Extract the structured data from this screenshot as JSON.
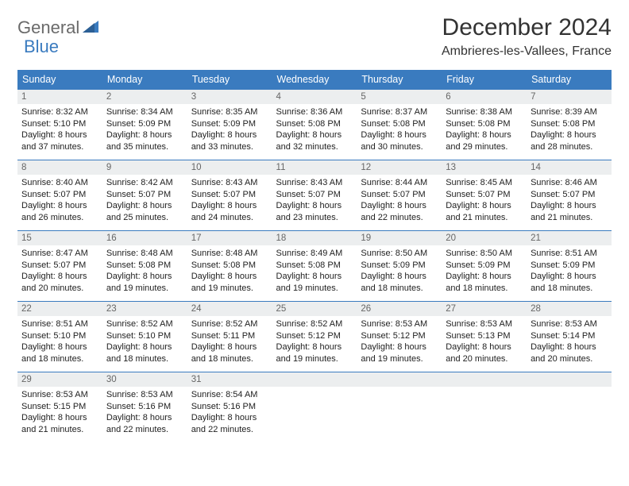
{
  "brand": {
    "part1": "General",
    "part2": "Blue"
  },
  "title": "December 2024",
  "location": "Ambrieres-les-Vallees, France",
  "colors": {
    "header_bg": "#3a7bbf",
    "header_text": "#ffffff",
    "daynum_bg": "#eceeef",
    "daynum_text": "#666666",
    "border": "#3a7bbf",
    "logo_gray": "#6a6a6a",
    "logo_blue": "#3a7bbf"
  },
  "weekdays": [
    "Sunday",
    "Monday",
    "Tuesday",
    "Wednesday",
    "Thursday",
    "Friday",
    "Saturday"
  ],
  "weeks": [
    [
      {
        "n": "1",
        "sr": "8:32 AM",
        "ss": "5:10 PM",
        "dl": "8 hours and 37 minutes."
      },
      {
        "n": "2",
        "sr": "8:34 AM",
        "ss": "5:09 PM",
        "dl": "8 hours and 35 minutes."
      },
      {
        "n": "3",
        "sr": "8:35 AM",
        "ss": "5:09 PM",
        "dl": "8 hours and 33 minutes."
      },
      {
        "n": "4",
        "sr": "8:36 AM",
        "ss": "5:08 PM",
        "dl": "8 hours and 32 minutes."
      },
      {
        "n": "5",
        "sr": "8:37 AM",
        "ss": "5:08 PM",
        "dl": "8 hours and 30 minutes."
      },
      {
        "n": "6",
        "sr": "8:38 AM",
        "ss": "5:08 PM",
        "dl": "8 hours and 29 minutes."
      },
      {
        "n": "7",
        "sr": "8:39 AM",
        "ss": "5:08 PM",
        "dl": "8 hours and 28 minutes."
      }
    ],
    [
      {
        "n": "8",
        "sr": "8:40 AM",
        "ss": "5:07 PM",
        "dl": "8 hours and 26 minutes."
      },
      {
        "n": "9",
        "sr": "8:42 AM",
        "ss": "5:07 PM",
        "dl": "8 hours and 25 minutes."
      },
      {
        "n": "10",
        "sr": "8:43 AM",
        "ss": "5:07 PM",
        "dl": "8 hours and 24 minutes."
      },
      {
        "n": "11",
        "sr": "8:43 AM",
        "ss": "5:07 PM",
        "dl": "8 hours and 23 minutes."
      },
      {
        "n": "12",
        "sr": "8:44 AM",
        "ss": "5:07 PM",
        "dl": "8 hours and 22 minutes."
      },
      {
        "n": "13",
        "sr": "8:45 AM",
        "ss": "5:07 PM",
        "dl": "8 hours and 21 minutes."
      },
      {
        "n": "14",
        "sr": "8:46 AM",
        "ss": "5:07 PM",
        "dl": "8 hours and 21 minutes."
      }
    ],
    [
      {
        "n": "15",
        "sr": "8:47 AM",
        "ss": "5:07 PM",
        "dl": "8 hours and 20 minutes."
      },
      {
        "n": "16",
        "sr": "8:48 AM",
        "ss": "5:08 PM",
        "dl": "8 hours and 19 minutes."
      },
      {
        "n": "17",
        "sr": "8:48 AM",
        "ss": "5:08 PM",
        "dl": "8 hours and 19 minutes."
      },
      {
        "n": "18",
        "sr": "8:49 AM",
        "ss": "5:08 PM",
        "dl": "8 hours and 19 minutes."
      },
      {
        "n": "19",
        "sr": "8:50 AM",
        "ss": "5:09 PM",
        "dl": "8 hours and 18 minutes."
      },
      {
        "n": "20",
        "sr": "8:50 AM",
        "ss": "5:09 PM",
        "dl": "8 hours and 18 minutes."
      },
      {
        "n": "21",
        "sr": "8:51 AM",
        "ss": "5:09 PM",
        "dl": "8 hours and 18 minutes."
      }
    ],
    [
      {
        "n": "22",
        "sr": "8:51 AM",
        "ss": "5:10 PM",
        "dl": "8 hours and 18 minutes."
      },
      {
        "n": "23",
        "sr": "8:52 AM",
        "ss": "5:10 PM",
        "dl": "8 hours and 18 minutes."
      },
      {
        "n": "24",
        "sr": "8:52 AM",
        "ss": "5:11 PM",
        "dl": "8 hours and 18 minutes."
      },
      {
        "n": "25",
        "sr": "8:52 AM",
        "ss": "5:12 PM",
        "dl": "8 hours and 19 minutes."
      },
      {
        "n": "26",
        "sr": "8:53 AM",
        "ss": "5:12 PM",
        "dl": "8 hours and 19 minutes."
      },
      {
        "n": "27",
        "sr": "8:53 AM",
        "ss": "5:13 PM",
        "dl": "8 hours and 20 minutes."
      },
      {
        "n": "28",
        "sr": "8:53 AM",
        "ss": "5:14 PM",
        "dl": "8 hours and 20 minutes."
      }
    ],
    [
      {
        "n": "29",
        "sr": "8:53 AM",
        "ss": "5:15 PM",
        "dl": "8 hours and 21 minutes."
      },
      {
        "n": "30",
        "sr": "8:53 AM",
        "ss": "5:16 PM",
        "dl": "8 hours and 22 minutes."
      },
      {
        "n": "31",
        "sr": "8:54 AM",
        "ss": "5:16 PM",
        "dl": "8 hours and 22 minutes."
      },
      {
        "empty": true
      },
      {
        "empty": true
      },
      {
        "empty": true
      },
      {
        "empty": true
      }
    ]
  ],
  "labels": {
    "sunrise": "Sunrise:",
    "sunset": "Sunset:",
    "daylight": "Daylight:"
  }
}
